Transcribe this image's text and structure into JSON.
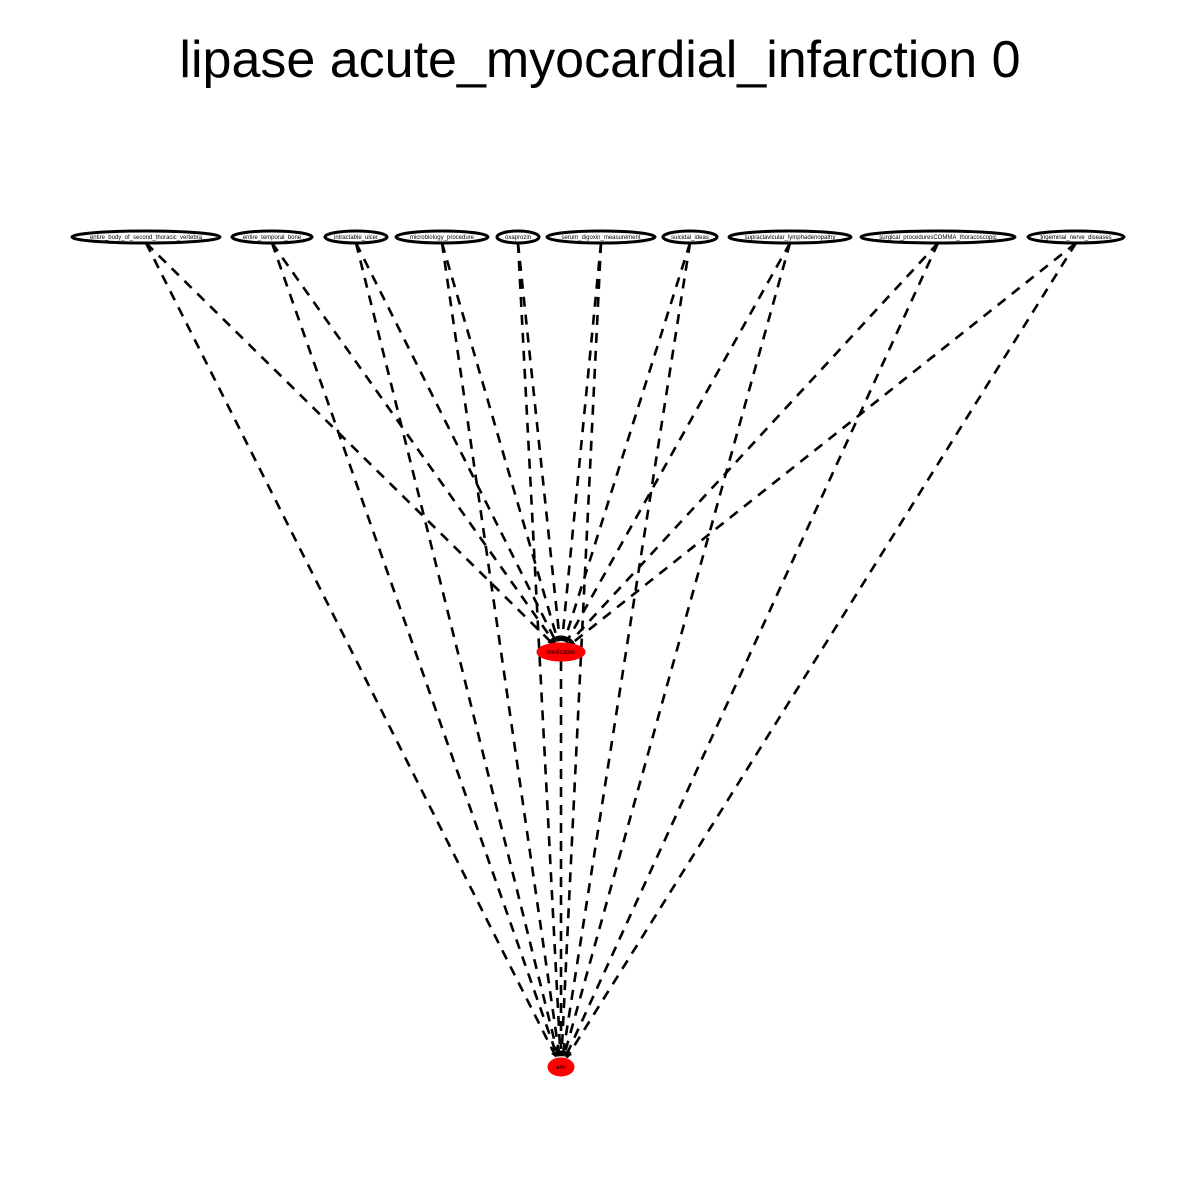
{
  "title": "lipase acute_myocardial_infarction 0",
  "graph": {
    "nodes": [
      {
        "id": "n1",
        "label": "entire_body_of_second_thoracic_vertebra",
        "kind": "top"
      },
      {
        "id": "n2",
        "label": "entire_temporal_bone",
        "kind": "top"
      },
      {
        "id": "n3",
        "label": "intractable_ulcer",
        "kind": "top"
      },
      {
        "id": "n4",
        "label": "microbiology_procedure",
        "kind": "top"
      },
      {
        "id": "n5",
        "label": "oxaprozin",
        "kind": "top"
      },
      {
        "id": "n6",
        "label": "serum_digoxin_measurement",
        "kind": "top"
      },
      {
        "id": "n7",
        "label": "suicidal_ideas",
        "kind": "top"
      },
      {
        "id": "n8",
        "label": "supraclavicular_lymphadenopathy",
        "kind": "top"
      },
      {
        "id": "n9",
        "label": "surgical_proceduresCOMMA_thoracoscopic",
        "kind": "top"
      },
      {
        "id": "n10",
        "label": "trigeminal_nerve_diseases",
        "kind": "top"
      },
      {
        "id": "med",
        "label": "medication",
        "kind": "red"
      },
      {
        "id": "ami",
        "label": "ami",
        "kind": "red"
      }
    ],
    "edges": [
      {
        "from": "n1",
        "to": "med"
      },
      {
        "from": "n1",
        "to": "ami"
      },
      {
        "from": "n2",
        "to": "med"
      },
      {
        "from": "n2",
        "to": "ami"
      },
      {
        "from": "n3",
        "to": "med"
      },
      {
        "from": "n3",
        "to": "ami"
      },
      {
        "from": "n4",
        "to": "med"
      },
      {
        "from": "n4",
        "to": "ami"
      },
      {
        "from": "n5",
        "to": "med"
      },
      {
        "from": "n5",
        "to": "ami"
      },
      {
        "from": "n6",
        "to": "med"
      },
      {
        "from": "n6",
        "to": "ami"
      },
      {
        "from": "n7",
        "to": "med"
      },
      {
        "from": "n7",
        "to": "ami"
      },
      {
        "from": "n8",
        "to": "med"
      },
      {
        "from": "n8",
        "to": "ami"
      },
      {
        "from": "n9",
        "to": "med"
      },
      {
        "from": "n9",
        "to": "ami"
      },
      {
        "from": "n10",
        "to": "med"
      },
      {
        "from": "n10",
        "to": "ami"
      },
      {
        "from": "med",
        "to": "ami"
      }
    ],
    "colors": {
      "highlight": "#ff0000",
      "stroke": "#000000",
      "background": "#ffffff"
    },
    "edge_style": "dashed"
  }
}
